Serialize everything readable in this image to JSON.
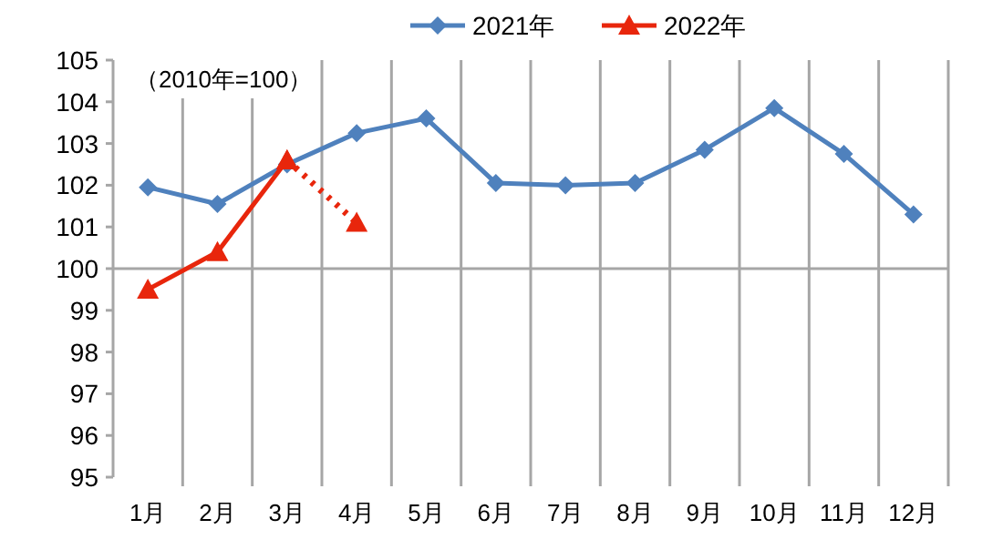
{
  "chart_data": {
    "type": "line",
    "categories": [
      "1月",
      "2月",
      "3月",
      "4月",
      "5月",
      "6月",
      "7月",
      "8月",
      "9月",
      "10月",
      "11月",
      "12月"
    ],
    "series": [
      {
        "name": "2021年",
        "color": "#4f81bd",
        "marker": "diamond",
        "line_style": "solid",
        "values": [
          101.95,
          101.55,
          102.5,
          103.25,
          103.6,
          102.05,
          102.0,
          102.05,
          102.85,
          103.85,
          102.75,
          101.3
        ]
      },
      {
        "name": "2022年",
        "color": "#e8260c",
        "marker": "triangle",
        "line_style": "solid",
        "values": [
          99.5,
          100.4,
          102.6,
          null,
          null,
          null,
          null,
          null,
          null,
          null,
          null,
          null
        ]
      },
      {
        "color": "#e8260c",
        "marker": "triangle",
        "line_style": "dotted",
        "values": [
          null,
          null,
          102.6,
          101.1,
          null,
          null,
          null,
          null,
          null,
          null,
          null,
          null
        ]
      }
    ],
    "ylim": [
      95,
      105
    ],
    "yticks": [
      95,
      96,
      97,
      98,
      99,
      100,
      101,
      102,
      103,
      104,
      105
    ],
    "grid": "x",
    "legend": "top",
    "ref_lines": [
      {
        "axis": "y",
        "value": 100,
        "color": "#a6a6a6"
      }
    ],
    "annotations": [
      "（2010年=100）"
    ]
  }
}
